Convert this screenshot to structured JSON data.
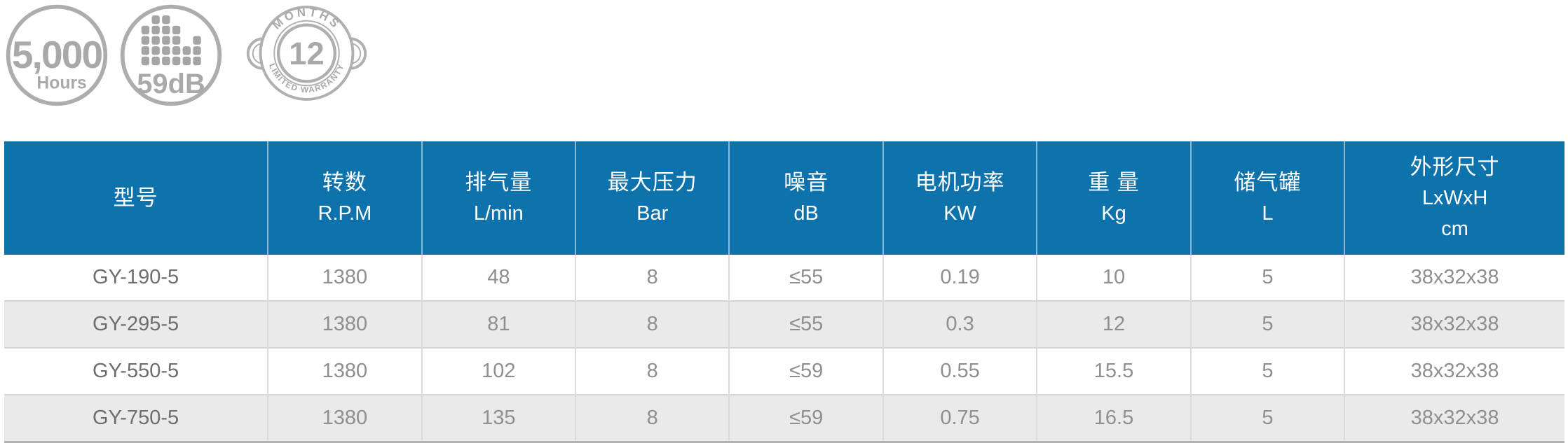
{
  "badges": {
    "hours": {
      "value": "5,000",
      "unit": "Hours"
    },
    "noise": {
      "value": "59dB",
      "equalizer_heights": [
        4,
        5,
        5,
        4,
        2,
        3
      ]
    },
    "warranty": {
      "top": "MONTHS",
      "value": "12",
      "bottom": "LIMITED WARRANTY"
    }
  },
  "colors": {
    "header_bg": "#0e72ad",
    "header_text": "#ffffff",
    "row_alt_bg": "#eaeaea",
    "cell_text": "#8f8f8f",
    "model_text": "#6e6e6e",
    "badge_gray": "#a9a9a9",
    "table_bottom_border": "#b3b3b3"
  },
  "table": {
    "columns": [
      {
        "id": "model",
        "lines": [
          "型号"
        ]
      },
      {
        "id": "rpm",
        "lines": [
          "转数",
          "R.P.M"
        ]
      },
      {
        "id": "displacement",
        "lines": [
          "排气量",
          "L/min"
        ]
      },
      {
        "id": "max-pressure",
        "lines": [
          "最大压力",
          "Bar"
        ]
      },
      {
        "id": "noise",
        "lines": [
          "噪音",
          "dB"
        ]
      },
      {
        "id": "motor-power",
        "lines": [
          "电机功率",
          "KW"
        ]
      },
      {
        "id": "weight",
        "lines": [
          "重 量",
          "Kg"
        ]
      },
      {
        "id": "tank",
        "lines": [
          "储气罐",
          "L"
        ]
      },
      {
        "id": "dimensions",
        "lines": [
          "外形尺寸",
          "LxWxH",
          "cm"
        ]
      }
    ],
    "rows": [
      [
        "GY-190-5",
        "1380",
        "48",
        "8",
        "≤55",
        "0.19",
        "10",
        "5",
        "38x32x38"
      ],
      [
        "GY-295-5",
        "1380",
        "81",
        "8",
        "≤55",
        "0.3",
        "12",
        "5",
        "38x32x38"
      ],
      [
        "GY-550-5",
        "1380",
        "102",
        "8",
        "≤59",
        "0.55",
        "15.5",
        "5",
        "38x32x38"
      ],
      [
        "GY-750-5",
        "1380",
        "135",
        "8",
        "≤59",
        "0.75",
        "16.5",
        "5",
        "38x32x38"
      ]
    ]
  }
}
